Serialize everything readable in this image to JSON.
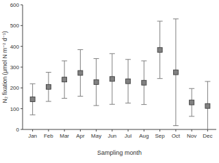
{
  "chart_data": {
    "type": "scatter",
    "x_label": "Sampling month",
    "y_label": "N₂ fixation (μmol N m⁻² d⁻¹)",
    "categories": [
      "Jan",
      "Feb",
      "Mar",
      "Apr",
      "May",
      "Jun",
      "Jul",
      "Aug",
      "Sep",
      "Oct",
      "Nov",
      "Dec"
    ],
    "values": [
      145,
      205,
      240,
      272,
      228,
      243,
      232,
      225,
      383,
      275,
      130,
      113
    ],
    "errors": [
      75,
      70,
      90,
      112,
      113,
      122,
      105,
      105,
      138,
      257,
      67,
      118
    ],
    "color": "#808080",
    "marker": "square",
    "ylim": [
      0,
      600
    ],
    "yticks": [
      0,
      100,
      200,
      300,
      400,
      500,
      600
    ]
  }
}
